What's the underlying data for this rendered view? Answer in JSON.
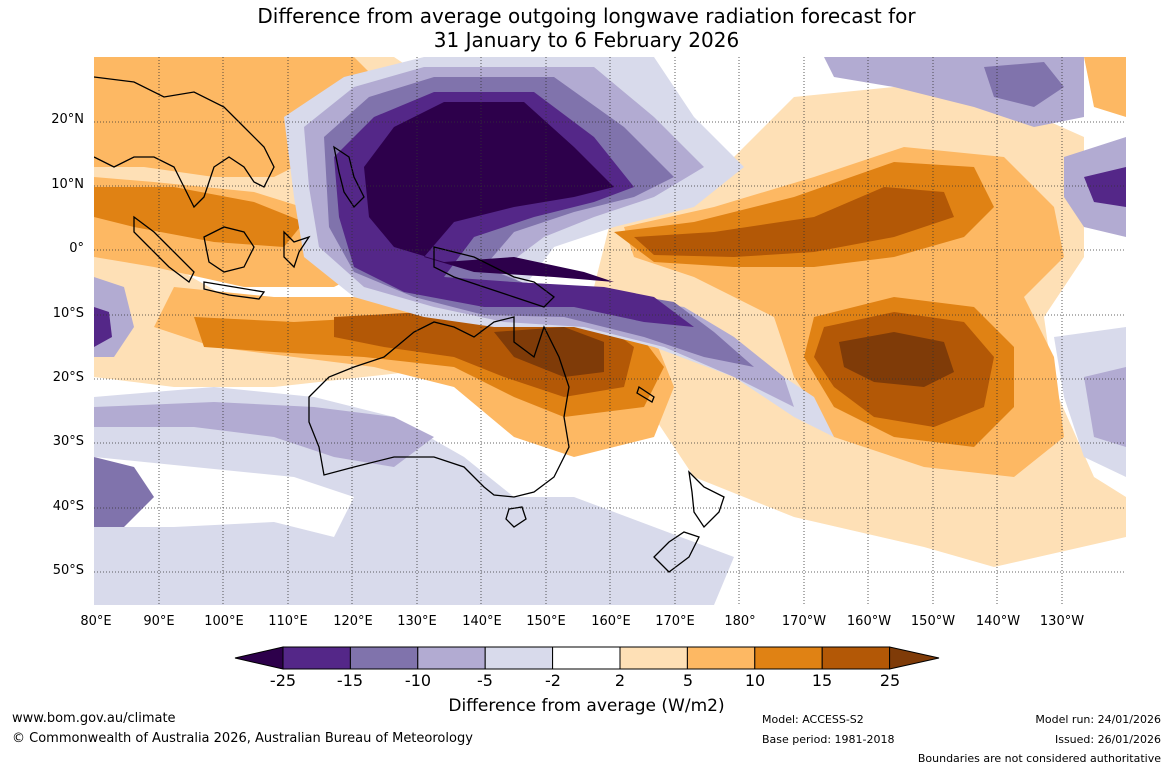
{
  "title": {
    "line1": "Difference from average outgoing longwave radiation forecast for",
    "line2": "31 January to 6 February 2026"
  },
  "map": {
    "lat_labels": [
      "20°N",
      "10°N",
      "0°",
      "10°S",
      "20°S",
      "30°S",
      "40°S",
      "50°S"
    ],
    "lon_labels": [
      "80°E",
      "90°E",
      "100°E",
      "110°E",
      "120°E",
      "130°E",
      "140°E",
      "150°E",
      "160°E",
      "170°E",
      "180°",
      "170°W",
      "160°W",
      "150°W",
      "140°W",
      "130°W"
    ]
  },
  "colorbar": {
    "ticks": [
      "-25",
      "-15",
      "-10",
      "-5",
      "-2",
      "2",
      "5",
      "10",
      "15",
      "25"
    ],
    "colors": [
      "#2d004b",
      "#542788",
      "#8073ac",
      "#b2abd2",
      "#d8daeb",
      "#ffffff",
      "#fee0b6",
      "#fdb863",
      "#e08214",
      "#b35806",
      "#7f3b08"
    ],
    "title": "Difference from average (W/m2)"
  },
  "footer": {
    "website": "www.bom.gov.au/climate",
    "copyright": "© Commonwealth of Australia 2026, Australian Bureau of Meteorology",
    "model": "Model: ACCESS-S2",
    "base_period": "Base period: 1981-2018",
    "model_run": "Model run: 24/01/2026",
    "issued": "Issued: 26/01/2026",
    "disclaimer": "Boundaries are not considered authoritative"
  }
}
